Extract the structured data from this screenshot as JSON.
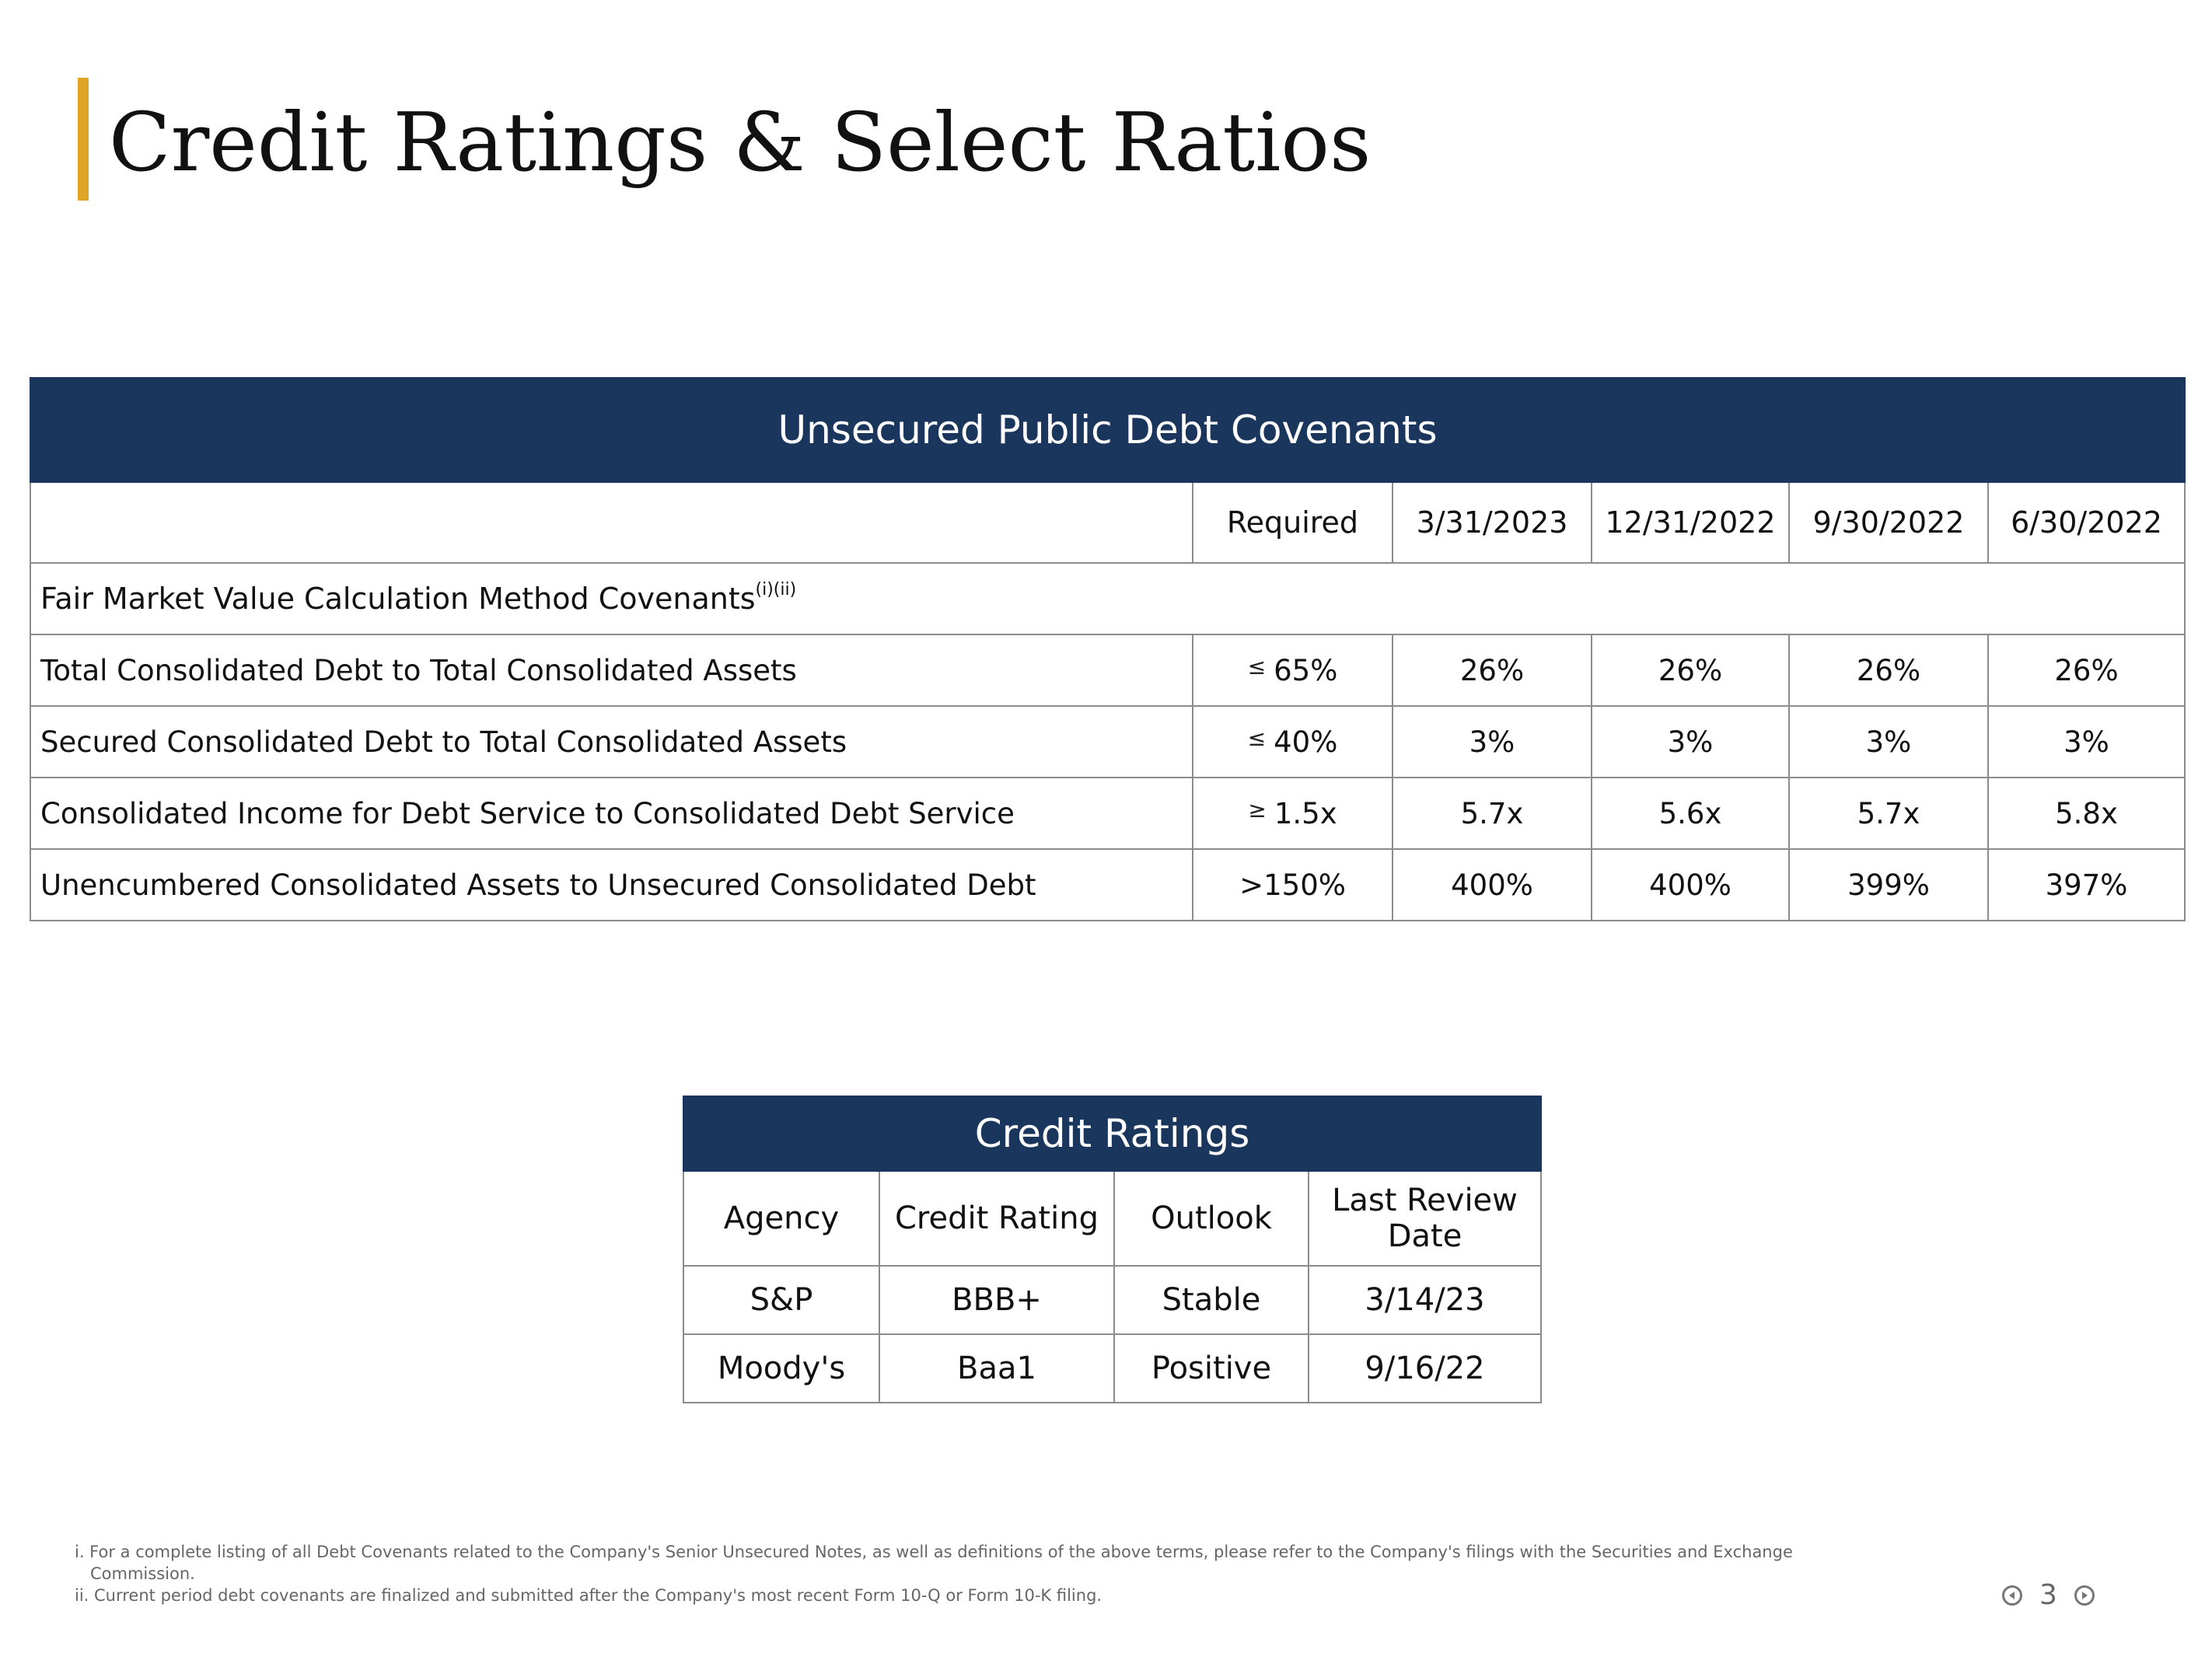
{
  "title": "Credit Ratings & Select Ratios",
  "covenants": {
    "banner": "Unsecured Public Debt Covenants",
    "columns": [
      "Required",
      "3/31/2023",
      "12/31/2022",
      "9/30/2022",
      "6/30/2022"
    ],
    "section_label": "Fair Market Value Calculation Method Covenants",
    "section_sup": "(i)(ii)",
    "rows": [
      {
        "label": "Total Consolidated Debt to Total Consolidated Assets",
        "req_symbol": "≤",
        "req_value": "65%",
        "values": [
          "26%",
          "26%",
          "26%",
          "26%"
        ]
      },
      {
        "label": "Secured Consolidated Debt to Total Consolidated Assets",
        "req_symbol": "≤",
        "req_value": "40%",
        "values": [
          "3%",
          "3%",
          "3%",
          "3%"
        ]
      },
      {
        "label": "Consolidated Income for Debt Service to Consolidated Debt Service",
        "req_symbol": "≥",
        "req_value": "1.5x",
        "values": [
          "5.7x",
          "5.6x",
          "5.7x",
          "5.8x"
        ]
      },
      {
        "label": "Unencumbered Consolidated Assets to Unsecured Consolidated Debt",
        "req_symbol": "",
        "req_value": ">150%",
        "values": [
          "400%",
          "400%",
          "399%",
          "397%"
        ]
      }
    ]
  },
  "credit_ratings": {
    "banner": "Credit Ratings",
    "columns": [
      "Agency",
      "Credit Rating",
      "Outlook",
      "Last Review Date"
    ],
    "rows": [
      [
        "S&P",
        "BBB+",
        "Stable",
        "3/14/23"
      ],
      [
        "Moody's",
        "Baa1",
        "Positive",
        "9/16/22"
      ]
    ]
  },
  "footnotes": {
    "note1_line1": "i. For a complete listing of all Debt Covenants related to the Company's Senior Unsecured Notes, as well as definitions of the above terms, please refer to the Company's filings with the Securities and Exchange",
    "note1_line2": "Commission.",
    "note2": "ii. Current period debt covenants are finalized and submitted after the Company's most recent Form 10-Q or Form 10-K filing."
  },
  "page_number": "3",
  "colors": {
    "accent": "#e0a526",
    "banner": "#1a365d",
    "border": "#8c8c8c"
  },
  "icons": {
    "prev": "circle-arrow-left",
    "next": "circle-arrow-right"
  }
}
